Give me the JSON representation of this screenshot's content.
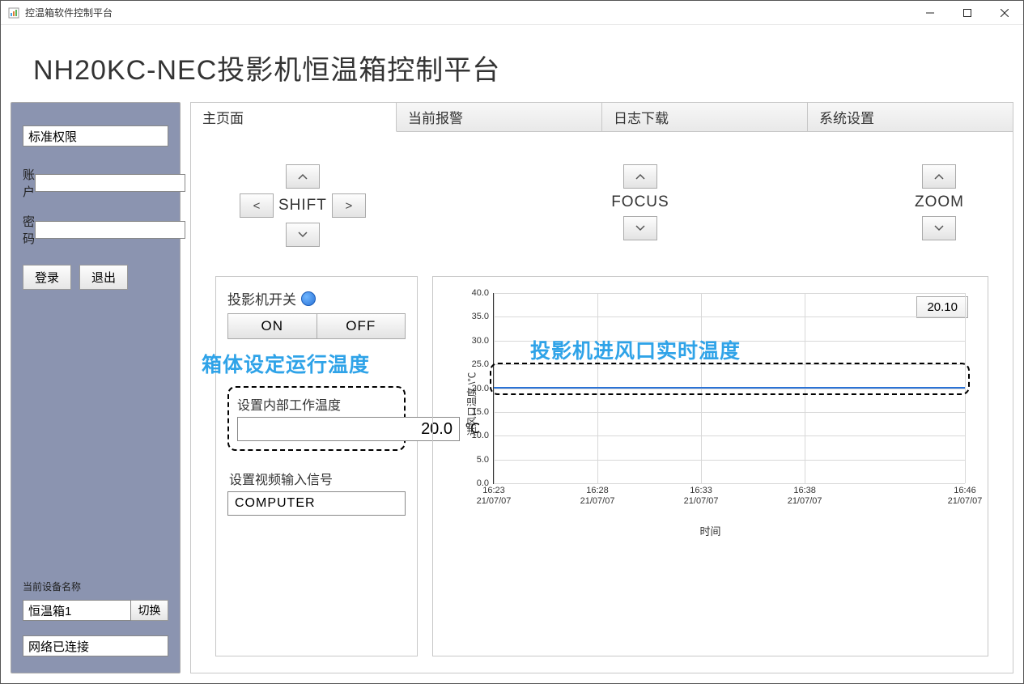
{
  "window": {
    "title": "控温箱软件控制平台"
  },
  "header": {
    "title": "NH20KC-NEC投影机恒温箱控制平台"
  },
  "sidebar": {
    "permission": "标准权限",
    "account_label": "账户",
    "account_value": "",
    "password_label": "密码",
    "password_value": "",
    "login": "登录",
    "logout": "退出",
    "device_label": "当前设备名称",
    "device_name": "恒温箱1",
    "switch": "切换",
    "net_status": "网络已连接"
  },
  "tabs": {
    "items": [
      "主页面",
      "当前报警",
      "日志下载",
      "系统设置"
    ],
    "active_index": 0
  },
  "controls": {
    "shift": "SHIFT",
    "focus": "FOCUS",
    "zoom": "ZOOM",
    "lt": "<",
    "gt": ">"
  },
  "projector": {
    "switch_label": "投影机开关",
    "on": "ON",
    "off": "OFF"
  },
  "overlay": {
    "set_temp": "箱体设定运行温度",
    "realtime_temp": "投影机进风口实时温度",
    "color": "#2fa3e8"
  },
  "temp_box": {
    "label": "设置内部工作温度",
    "value": "20.0",
    "unit": "℃"
  },
  "video": {
    "label": "设置视频输入信号",
    "value": "COMPUTER"
  },
  "chart": {
    "type": "line",
    "title": "",
    "current_value": "20.10",
    "ylabel": "进风口温度 \\℃",
    "xlabel": "时间",
    "ylim": [
      0,
      40
    ],
    "ytick_step": 5,
    "yticks": [
      0.0,
      5.0,
      10.0,
      15.0,
      20.0,
      25.0,
      30.0,
      35.0,
      40.0
    ],
    "xticks": [
      {
        "t": "16:23",
        "d": "21/07/07",
        "pos": 0.0
      },
      {
        "t": "16:28",
        "d": "21/07/07",
        "pos": 0.22
      },
      {
        "t": "16:33",
        "d": "21/07/07",
        "pos": 0.44
      },
      {
        "t": "16:38",
        "d": "21/07/07",
        "pos": 0.66
      },
      {
        "t": "16:46",
        "d": "21/07/07",
        "pos": 1.0
      }
    ],
    "series_value": 20.3,
    "series_color": "#2a72d6",
    "grid_color": "#d8d8d8",
    "background_color": "#ffffff"
  }
}
